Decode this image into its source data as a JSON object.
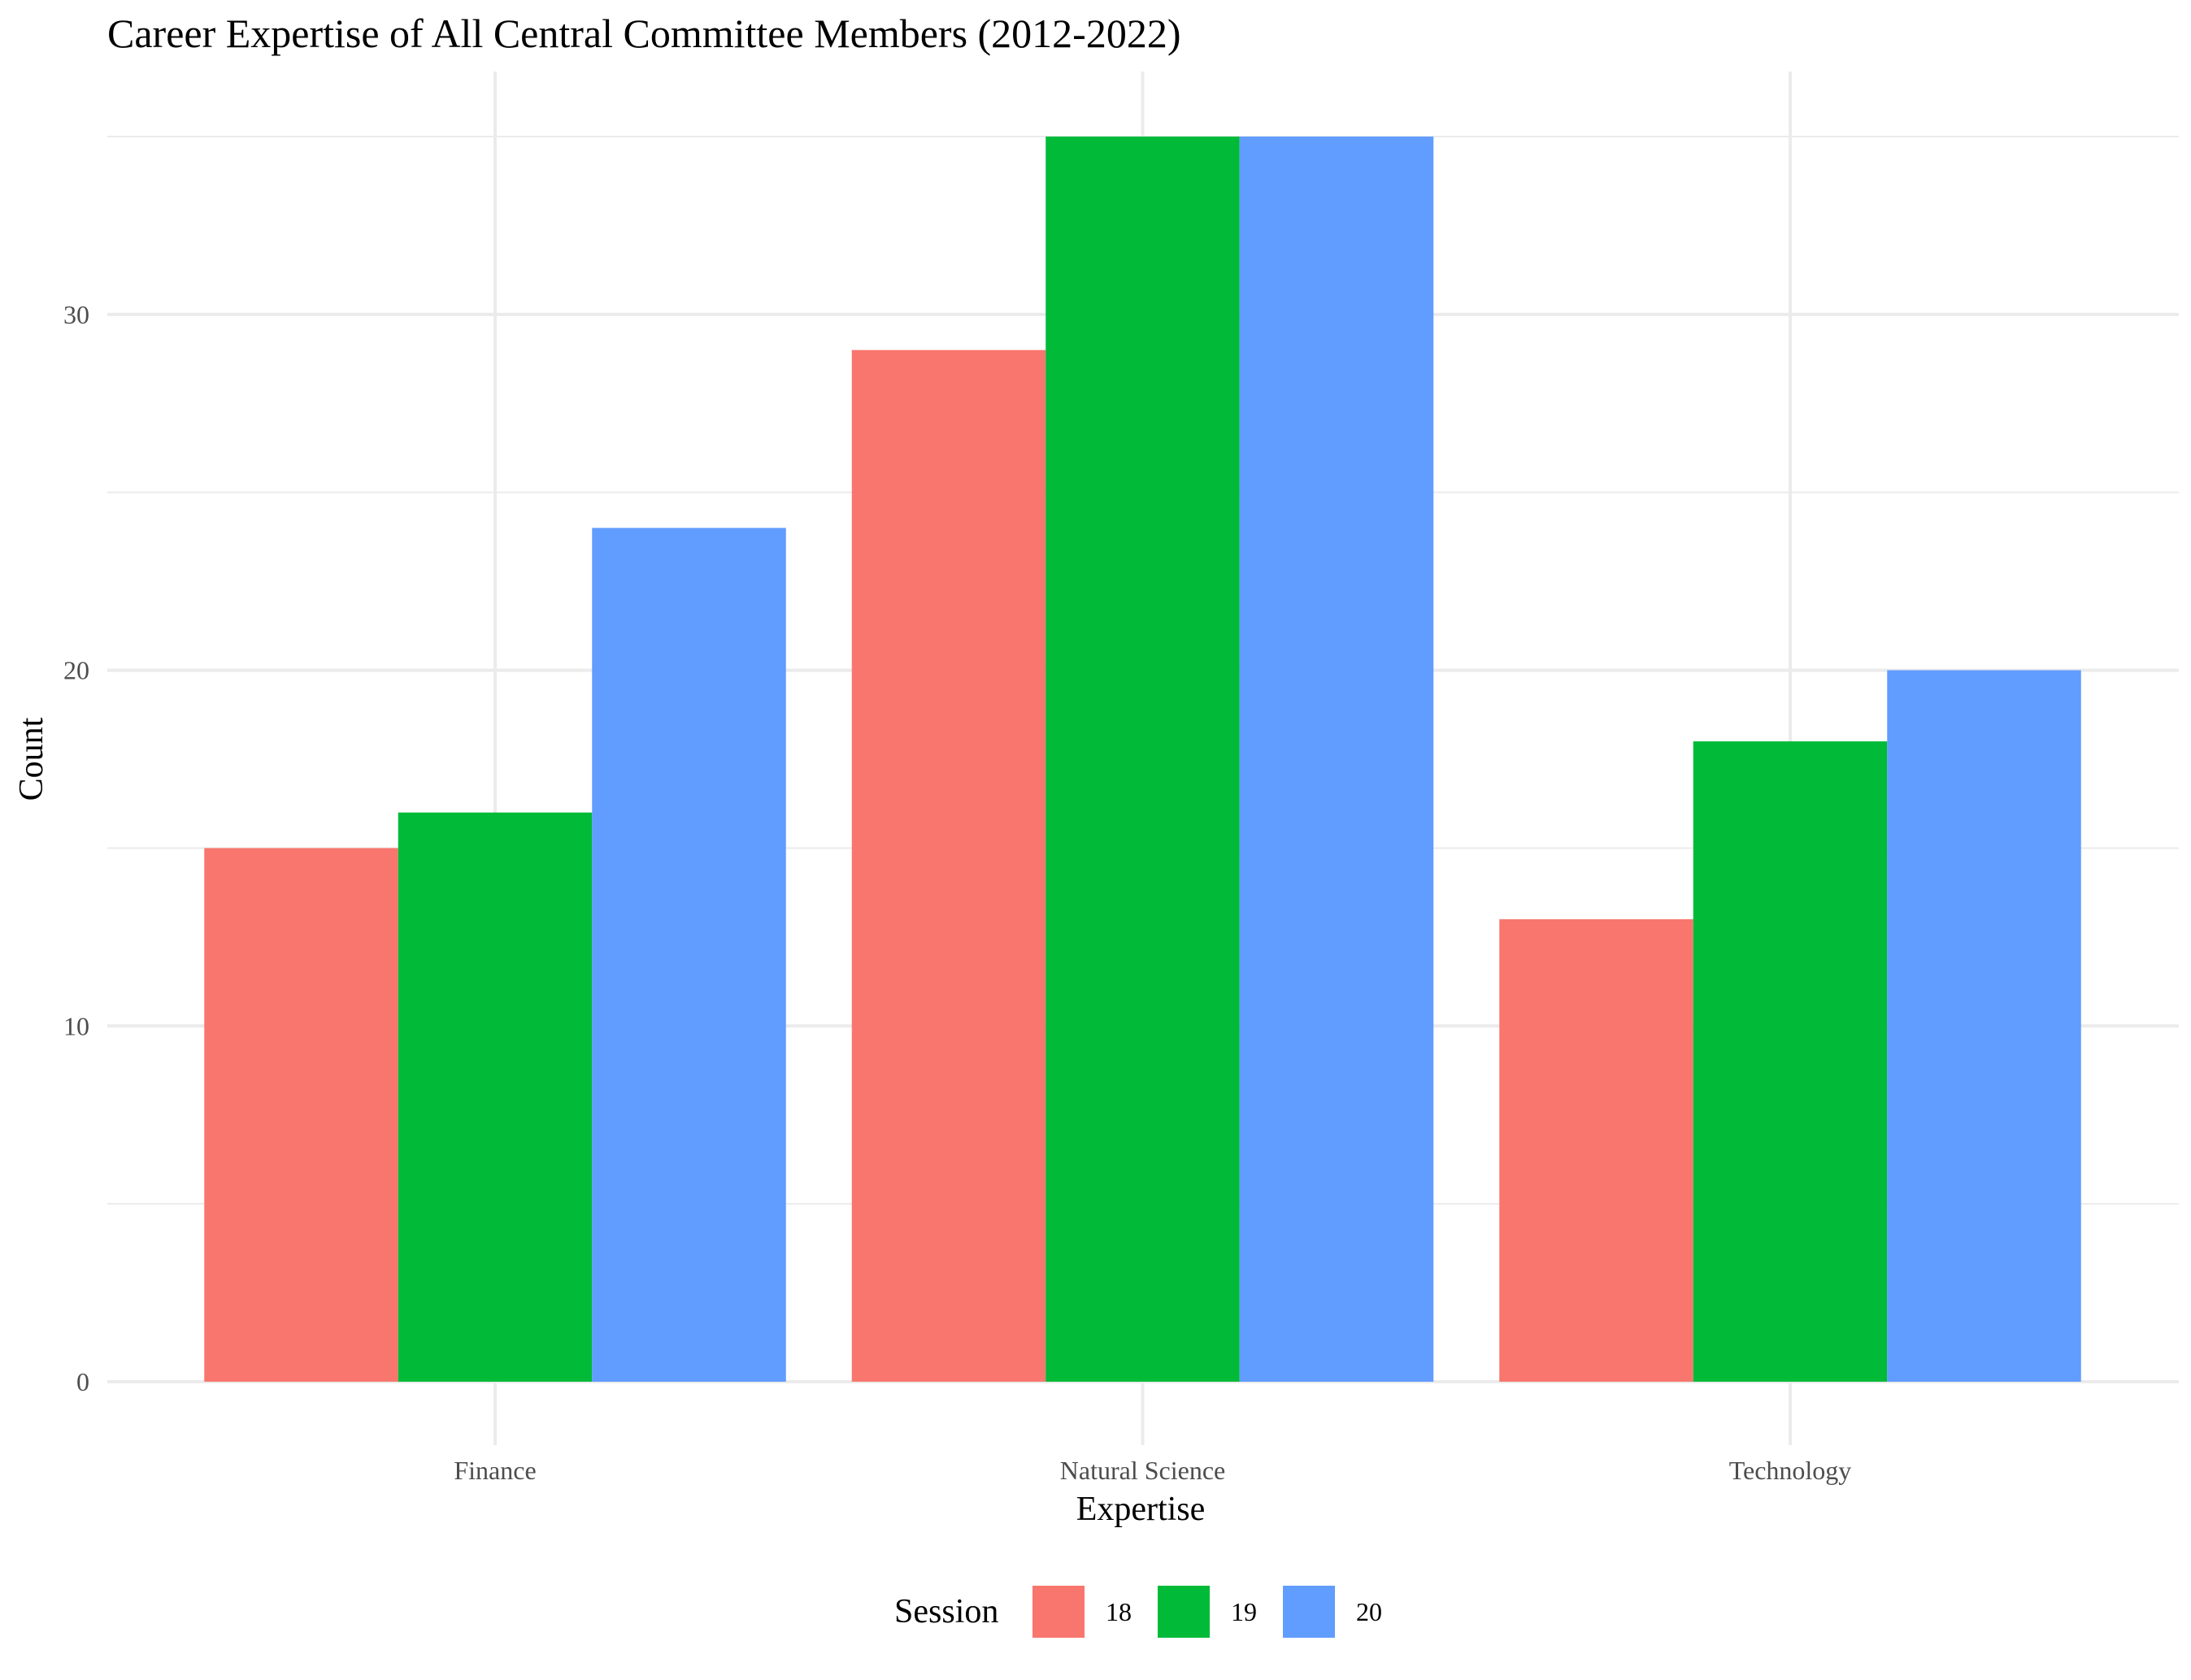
{
  "chart_data": {
    "type": "bar",
    "title": "Career Expertise of All Central Committee Members (2012-2022)",
    "xlabel": "Expertise",
    "ylabel": "Count",
    "categories": [
      "Finance",
      "Natural Science",
      "Technology"
    ],
    "series": [
      {
        "name": "18",
        "color": "#F8766D",
        "values": [
          15,
          29,
          13
        ]
      },
      {
        "name": "19",
        "color": "#00BA38",
        "values": [
          16,
          35,
          18
        ]
      },
      {
        "name": "20",
        "color": "#619CFF",
        "values": [
          24,
          35,
          20
        ]
      }
    ],
    "yticks": [
      0,
      10,
      20,
      30
    ],
    "ylim": [
      0,
      35
    ],
    "grid": true,
    "legend": {
      "title": "Session",
      "position": "bottom"
    }
  }
}
